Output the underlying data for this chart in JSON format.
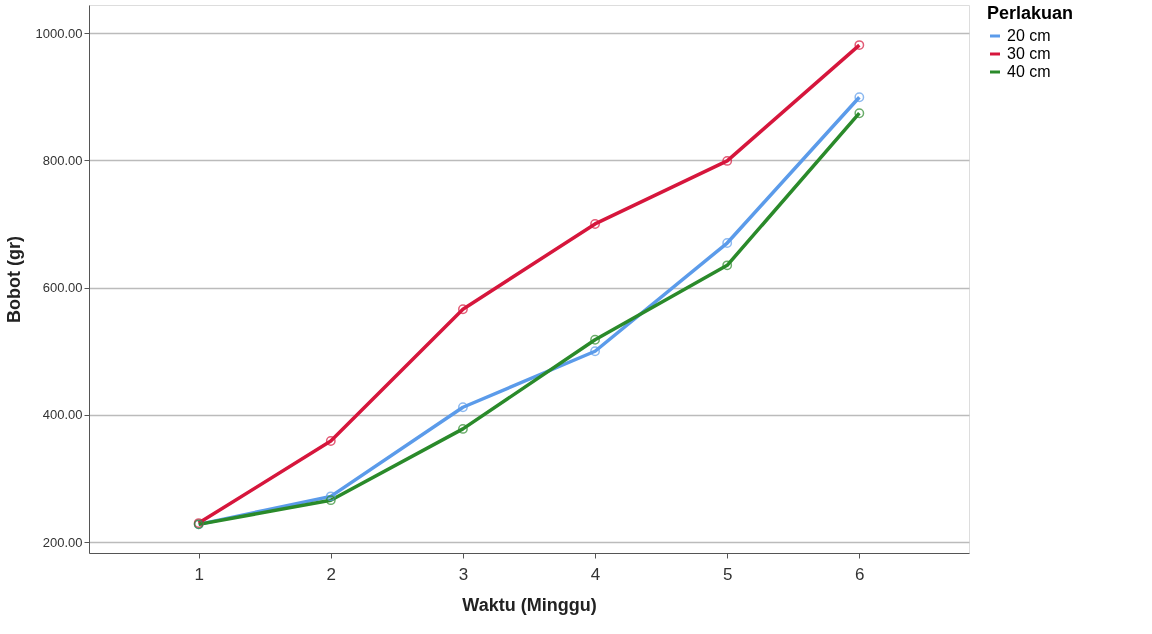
{
  "chart_data": {
    "type": "line",
    "xlabel": "Waktu (Minggu)",
    "ylabel": "Bobot (gr)",
    "legend_title": "Perlakuan",
    "x": [
      1,
      2,
      3,
      4,
      5,
      6
    ],
    "series": [
      {
        "name": "20 cm",
        "color": "#5b9bea",
        "values": [
          228,
          272,
          412,
          500,
          670,
          899
        ]
      },
      {
        "name": "30 cm",
        "color": "#d6163c",
        "values": [
          230,
          359,
          566,
          700,
          799,
          981
        ]
      },
      {
        "name": "40 cm",
        "color": "#2a8a2a",
        "values": [
          228,
          266,
          378,
          518,
          635,
          874
        ]
      }
    ],
    "xlim": [
      0.17,
      6.83
    ],
    "xticks": [
      1,
      2,
      3,
      4,
      5,
      6
    ],
    "ylim": [
      183,
      1044
    ],
    "yticks": [
      {
        "value": 200,
        "label": "200.00"
      },
      {
        "value": 400,
        "label": "400.00"
      },
      {
        "value": 600,
        "label": "600.00"
      },
      {
        "value": 800,
        "label": "800.00"
      },
      {
        "value": 1000,
        "label": "1000.00"
      }
    ],
    "grid": "y",
    "legend": "top right",
    "marker": "circle",
    "line_style": "solid"
  }
}
